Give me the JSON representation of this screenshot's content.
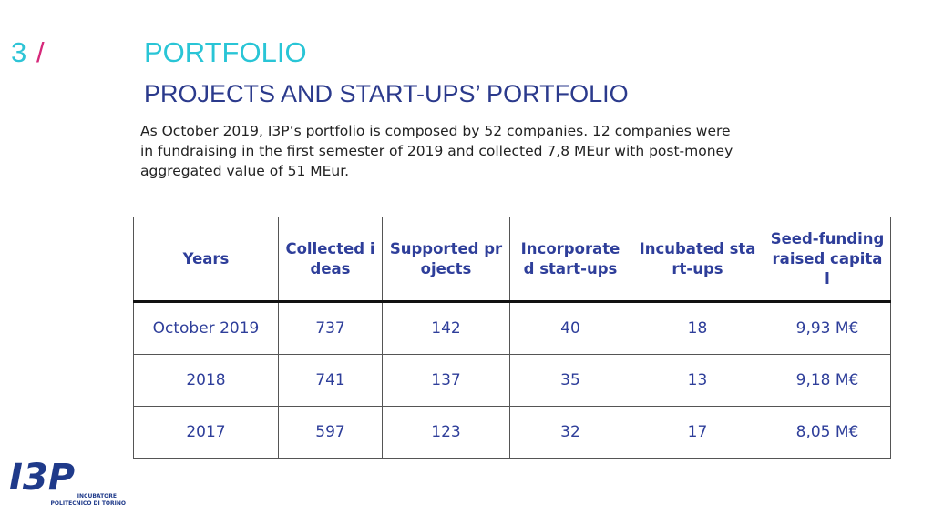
{
  "header": {
    "number": "3",
    "slash": "/",
    "title": "PORTFOLIO",
    "subtitle": "PROJECTS AND START-UPS’ PORTFOLIO",
    "text_lines": [
      "As October 2019, I3P’s portfolio is composed by 52 companies. 12 companies were",
      "in fundraising in the first semester of 2019 and collected 7,8 MEur with post-money",
      "aggregated value of 51 MEur."
    ]
  },
  "table": {
    "columns": [
      "Years",
      "Collected ideas",
      "Supported projects",
      "Incorporated start-ups",
      "Incubated start-ups",
      "Seed-funding raised capital"
    ],
    "rows": [
      [
        "October 2019",
        "737",
        "142",
        "40",
        "18",
        "9,93 M€"
      ],
      [
        "2018",
        "741",
        "137",
        "35",
        "13",
        "9,18 M€"
      ],
      [
        "2017",
        "597",
        "123",
        "32",
        "17",
        "8,05 M€"
      ]
    ]
  },
  "logo": {
    "mark": "I3P",
    "line1": "INCUBATORE",
    "line2": "POLITECNICO DI TORINO"
  }
}
